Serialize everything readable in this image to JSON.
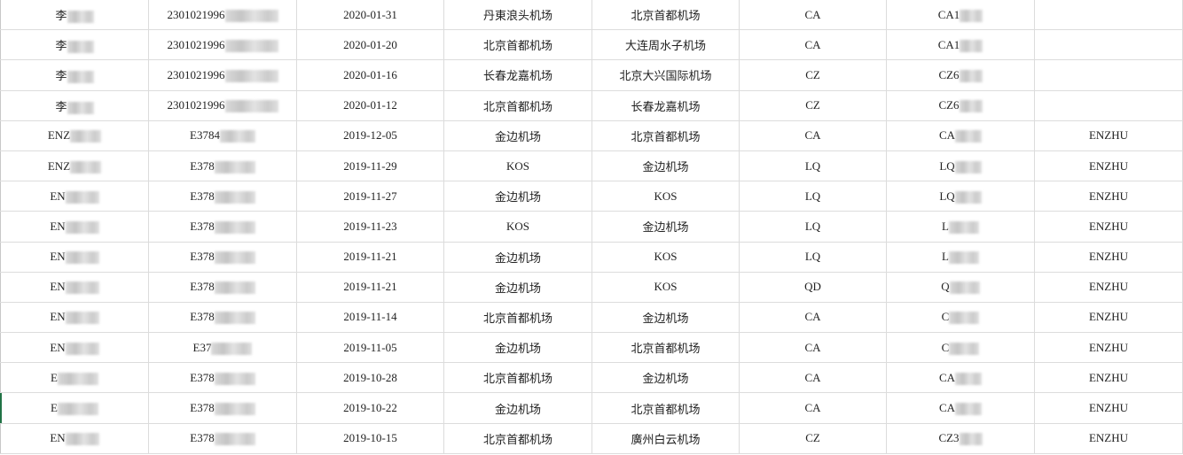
{
  "sheet": {
    "rows": [
      {
        "name": "李",
        "id": "2301021996",
        "date": "2020-01-31",
        "from": "丹東浪头机场",
        "to": "北京首都机场",
        "airline": "CA",
        "flight": "CA1",
        "passenger": ""
      },
      {
        "name": "李",
        "id": "2301021996",
        "date": "2020-01-20",
        "from": "北京首都机场",
        "to": "大连周水子机场",
        "airline": "CA",
        "flight": "CA1",
        "passenger": ""
      },
      {
        "name": "李",
        "id": "2301021996",
        "date": "2020-01-16",
        "from": "长春龙嘉机场",
        "to": "北京大兴国际机场",
        "airline": "CZ",
        "flight": "CZ6",
        "passenger": ""
      },
      {
        "name": "李",
        "id": "2301021996",
        "date": "2020-01-12",
        "from": "北京首都机场",
        "to": "长春龙嘉机场",
        "airline": "CZ",
        "flight": "CZ6",
        "passenger": ""
      },
      {
        "name": "ENZ",
        "id": "E3784",
        "date": "2019-12-05",
        "from": "金边机场",
        "to": "北京首都机场",
        "airline": "CA",
        "flight": "CA",
        "passenger": "ENZHU"
      },
      {
        "name": "ENZ",
        "id": "E378",
        "date": "2019-11-29",
        "from": "KOS",
        "to": "金边机场",
        "airline": "LQ",
        "flight": "LQ",
        "passenger": "ENZHU"
      },
      {
        "name": "EN",
        "id": "E378",
        "date": "2019-11-27",
        "from": "金边机场",
        "to": "KOS",
        "airline": "LQ",
        "flight": "LQ",
        "passenger": "ENZHU"
      },
      {
        "name": "EN",
        "id": "E378",
        "date": "2019-11-23",
        "from": "KOS",
        "to": "金边机场",
        "airline": "LQ",
        "flight": "L",
        "passenger": "ENZHU"
      },
      {
        "name": "EN",
        "id": "E378",
        "date": "2019-11-21",
        "from": "金边机场",
        "to": "KOS",
        "airline": "LQ",
        "flight": "L",
        "passenger": "ENZHU"
      },
      {
        "name": "EN",
        "id": "E378",
        "date": "2019-11-21",
        "from": "金边机场",
        "to": "KOS",
        "airline": "QD",
        "flight": "Q",
        "passenger": "ENZHU"
      },
      {
        "name": "EN",
        "id": "E378",
        "date": "2019-11-14",
        "from": "北京首都机场",
        "to": "金边机场",
        "airline": "CA",
        "flight": "C",
        "passenger": "ENZHU"
      },
      {
        "name": "EN",
        "id": "E37",
        "date": "2019-11-05",
        "from": "金边机场",
        "to": "北京首都机场",
        "airline": "CA",
        "flight": "C",
        "passenger": "ENZHU"
      },
      {
        "name": "E",
        "id": "E378",
        "date": "2019-10-28",
        "from": "北京首都机场",
        "to": "金边机场",
        "airline": "CA",
        "flight": "CA",
        "passenger": "ENZHU"
      },
      {
        "name": "E",
        "id": "E378",
        "date": "2019-10-22",
        "from": "金边机场",
        "to": "北京首都机场",
        "airline": "CA",
        "flight": "CA",
        "passenger": "ENZHU"
      },
      {
        "name": "EN",
        "id": "E378",
        "date": "2019-10-15",
        "from": "北京首都机场",
        "to": "廣州白云机场",
        "airline": "CZ",
        "flight": "CZ3",
        "passenger": "ENZHU"
      }
    ]
  },
  "colors": {
    "grid": "#dcdcdc",
    "selection": "#217346"
  }
}
